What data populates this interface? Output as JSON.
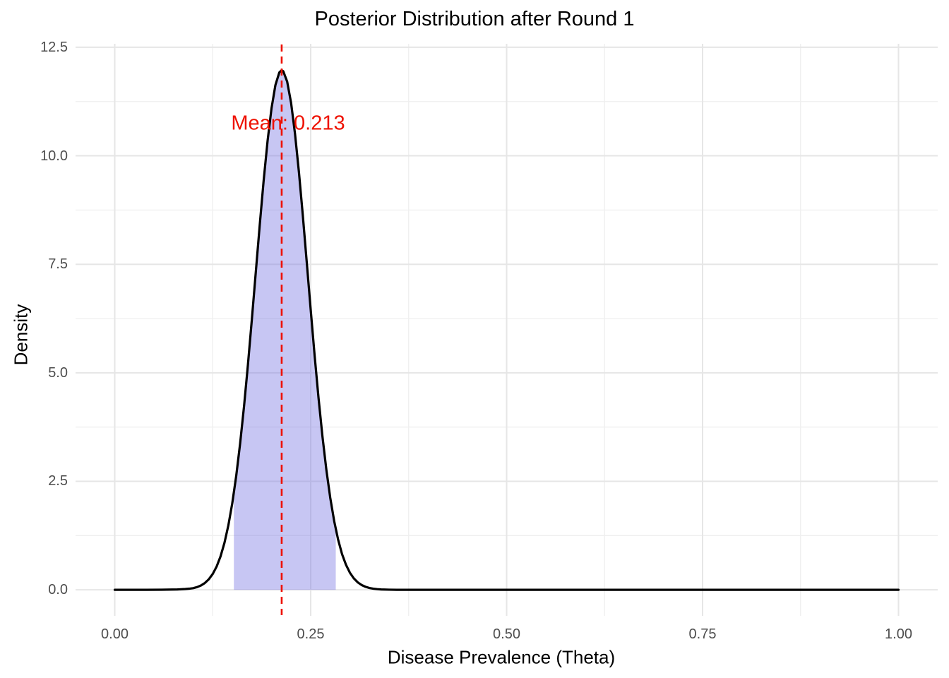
{
  "chart_data": {
    "type": "area",
    "title": "Posterior Distribution after Round 1",
    "xlabel": "Disease Prevalence (Theta)",
    "ylabel": "Density",
    "xlim": [
      -0.05,
      1.05
    ],
    "ylim": [
      -0.6,
      12.58
    ],
    "x_ticks": {
      "values": [
        0,
        0.25,
        0.5,
        0.75,
        1.0
      ],
      "labels": [
        "0.00",
        "0.25",
        "0.50",
        "0.75",
        "1.00"
      ],
      "minor_values": [
        0.125,
        0.375,
        0.625,
        0.875
      ]
    },
    "y_ticks": {
      "values": [
        0,
        2.5,
        5,
        7.5,
        10,
        12.5
      ],
      "labels": [
        "0.0",
        "2.5",
        "5.0",
        "7.5",
        "10.0",
        "12.5"
      ],
      "minor_values": [
        1.25,
        3.75,
        6.25,
        8.75,
        11.25
      ]
    },
    "grid": true,
    "legend": "none",
    "mean": 0.213,
    "mean_label": "Mean: 0.213",
    "credible_interval": [
      0.152,
      0.282
    ],
    "peak_density": 11.97,
    "curve_points": [
      [
        0.0,
        0.0
      ],
      [
        0.02,
        0.0
      ],
      [
        0.04,
        0.0
      ],
      [
        0.06,
        0.002
      ],
      [
        0.08,
        0.008
      ],
      [
        0.09,
        0.018
      ],
      [
        0.095,
        0.026
      ],
      [
        0.1,
        0.038
      ],
      [
        0.105,
        0.062
      ],
      [
        0.11,
        0.1
      ],
      [
        0.115,
        0.157
      ],
      [
        0.12,
        0.242
      ],
      [
        0.125,
        0.365
      ],
      [
        0.13,
        0.536
      ],
      [
        0.135,
        0.771
      ],
      [
        0.14,
        1.083
      ],
      [
        0.145,
        1.488
      ],
      [
        0.15,
        1.999
      ],
      [
        0.155,
        2.626
      ],
      [
        0.16,
        3.375
      ],
      [
        0.165,
        4.235
      ],
      [
        0.17,
        5.2
      ],
      [
        0.175,
        6.242
      ],
      [
        0.18,
        7.327
      ],
      [
        0.185,
        8.405
      ],
      [
        0.19,
        9.43
      ],
      [
        0.195,
        10.343
      ],
      [
        0.2,
        11.091
      ],
      [
        0.205,
        11.629
      ],
      [
        0.21,
        11.921
      ],
      [
        0.213,
        11.97
      ],
      [
        0.215,
        11.948
      ],
      [
        0.22,
        11.708
      ],
      [
        0.225,
        11.218
      ],
      [
        0.23,
        10.507
      ],
      [
        0.235,
        9.624
      ],
      [
        0.24,
        8.617
      ],
      [
        0.245,
        7.543
      ],
      [
        0.25,
        6.457
      ],
      [
        0.255,
        5.403
      ],
      [
        0.26,
        4.422
      ],
      [
        0.265,
        3.537
      ],
      [
        0.27,
        2.766
      ],
      [
        0.275,
        2.115
      ],
      [
        0.28,
        1.582
      ],
      [
        0.285,
        1.156
      ],
      [
        0.29,
        0.823
      ],
      [
        0.295,
        0.578
      ],
      [
        0.3,
        0.395
      ],
      [
        0.305,
        0.264
      ],
      [
        0.31,
        0.172
      ],
      [
        0.315,
        0.11
      ],
      [
        0.32,
        0.069
      ],
      [
        0.325,
        0.042
      ],
      [
        0.33,
        0.025
      ],
      [
        0.335,
        0.015
      ],
      [
        0.34,
        0.008
      ],
      [
        0.35,
        0.003
      ],
      [
        0.36,
        0.0
      ],
      [
        0.4,
        0.0
      ],
      [
        0.5,
        0.0
      ],
      [
        0.6,
        0.0
      ],
      [
        0.7,
        0.0
      ],
      [
        0.8,
        0.0
      ],
      [
        0.9,
        0.0
      ],
      [
        1.0,
        0.0
      ]
    ],
    "colors": {
      "curve": "#000000",
      "fill": "#7370E2",
      "fill_opacity": 0.4,
      "mean_line": "#EE1100",
      "mean_text": "#EE1100",
      "grid_major": "#E6E6E6",
      "grid_minor": "#EFEFEF",
      "tick_text": "#4D4D4D",
      "background": "#FFFFFF"
    }
  }
}
